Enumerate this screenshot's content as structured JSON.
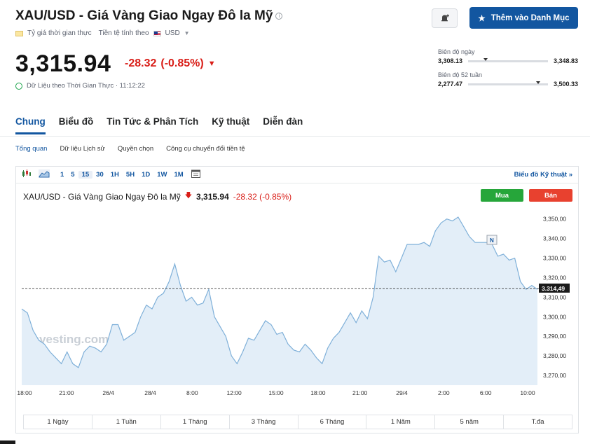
{
  "header": {
    "title": "XAU/USD - Giá Vàng Giao Ngay Đô la Mỹ",
    "rate_type": "Tỷ giá thời gian thực",
    "currency_label": "Tiền tệ tính theo",
    "currency": "USD",
    "add_watchlist": "Thêm vào Danh Mục"
  },
  "quote": {
    "price": "3,315.94",
    "change": "-28.32",
    "change_pct": "(-0.85%)",
    "realtime_label": "Dữ Liệu theo Thời Gian Thực · 11:12:22"
  },
  "ranges": {
    "day_label": "Biên độ ngày",
    "day_low": "3,308.13",
    "day_high": "3,348.83",
    "day_position": 0.19,
    "week52_label": "Biên độ 52 tuần",
    "week52_low": "2,277.47",
    "week52_high": "3,500.33",
    "week52_position": 0.85
  },
  "main_tabs": [
    "Chung",
    "Biểu đồ",
    "Tin Tức & Phân Tích",
    "Kỹ thuật",
    "Diễn đàn"
  ],
  "sub_tabs": [
    "Tổng quan",
    "Dữ liệu Lịch sử",
    "Quyền chọn",
    "Công cụ chuyển đổi tiền tệ"
  ],
  "toolbar": {
    "intervals": [
      "1",
      "5",
      "15",
      "30",
      "1H",
      "5H",
      "1D",
      "1W",
      "1M"
    ],
    "selected": "15",
    "tech_chart_link": "Biểu đồ Kỹ thuật »"
  },
  "chart_header": {
    "name": "XAU/USD - Giá Vàng Giao Ngay Đô la Mỹ",
    "price": "3,315.94",
    "change": "-28.32 (-0.85%)",
    "buy": "Mua",
    "sell": "Bán",
    "watermark": "Investing.com",
    "news_marker": "N"
  },
  "periods": [
    "1 Ngày",
    "1 Tuần",
    "1 Tháng",
    "3 Tháng",
    "6 Tháng",
    "1 Năm",
    "5 năm",
    "T.đa"
  ],
  "colors": {
    "accent": "#1256a0",
    "negative": "#d91e18",
    "line": "#7fb0d9",
    "area": "#e3eef8"
  },
  "chart_data": {
    "type": "area",
    "y_ticks": [
      "3,350,00",
      "3,340,00",
      "3,330,00",
      "3,320,00",
      "3,310,00",
      "3,300,00",
      "3,290,00",
      "3,280,00",
      "3,270,00"
    ],
    "ylim": [
      3265,
      3356
    ],
    "x_ticks": [
      "18:00",
      "21:00",
      "26/4",
      "28/4",
      "8:00",
      "12:00",
      "15:00",
      "18:00",
      "21:00",
      "29/4",
      "2:00",
      "6:00",
      "10:00"
    ],
    "last_value_label": "3.314,49",
    "last_value": 3314.49,
    "values": [
      3304,
      3302,
      3293,
      3288,
      3286,
      3282,
      3279,
      3276,
      3282,
      3276,
      3274,
      3282,
      3285,
      3284,
      3282,
      3286,
      3296,
      3296,
      3288,
      3290,
      3292,
      3300,
      3306,
      3304,
      3310,
      3312,
      3318,
      3327,
      3316,
      3308,
      3310,
      3306,
      3307,
      3314,
      3300,
      3295,
      3290,
      3280,
      3276,
      3282,
      3289,
      3288,
      3293,
      3298,
      3296,
      3291,
      3292,
      3286,
      3283,
      3282,
      3286,
      3283,
      3279,
      3276,
      3284,
      3289,
      3292,
      3297,
      3302,
      3297,
      3303,
      3299,
      3310,
      3331,
      3328,
      3329,
      3323,
      3330,
      3337,
      3337,
      3337,
      3338,
      3336,
      3344,
      3348,
      3350,
      3349,
      3351,
      3346,
      3341,
      3338,
      3338,
      3338,
      3337,
      3331,
      3332,
      3329,
      3330,
      3318,
      3314,
      3316,
      3314
    ]
  }
}
